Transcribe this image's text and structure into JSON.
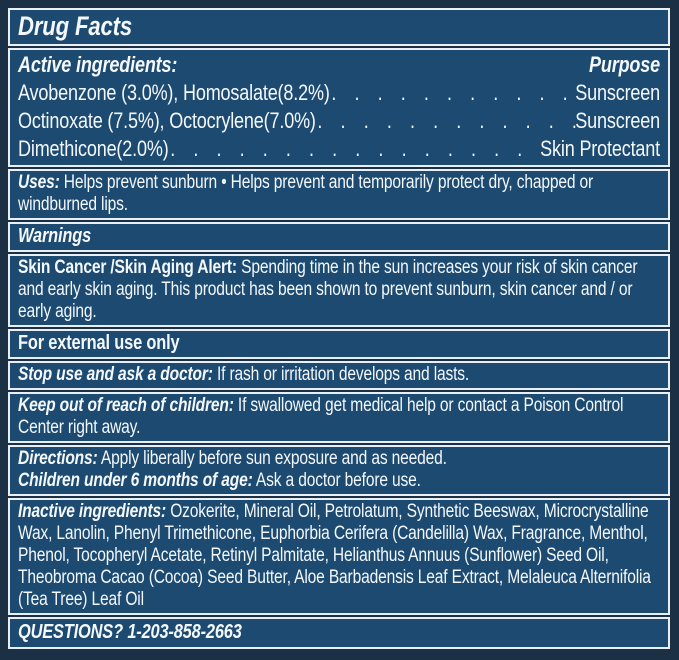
{
  "colors": {
    "panel_blue": "#1d4a71",
    "frame_navy": "#1b2f45",
    "border_white": "#e8eff5",
    "text_white": "#f4f8fb"
  },
  "title": "Drug Facts",
  "active": {
    "heading": "Active ingredients:",
    "purpose_heading": "Purpose",
    "leader_dots": ". . . . . . . . . . . . . . . . . . . . . . . . . . . . . . . . . . . . . . . . . . . . . . . . . . . . . . . . . . . .",
    "rows": [
      {
        "ingredient": "Avobenzone (3.0%), Homosalate(8.2%)",
        "purpose": "Sunscreen"
      },
      {
        "ingredient": "Octinoxate (7.5%), Octocrylene(7.0%)",
        "purpose": "Sunscreen"
      },
      {
        "ingredient": "Dimethicone(2.0%)",
        "purpose": "Skin Protectant"
      }
    ]
  },
  "uses": {
    "label": "Uses:",
    "text": "Helps prevent sunburn • Helps prevent and temporarily protect dry, chapped or windburned lips."
  },
  "warnings": {
    "heading": "Warnings"
  },
  "alert": {
    "label": "Skin Cancer /Skin Aging Alert:",
    "text": "Spending time in the sun increases your risk of skin cancer and early skin aging. This product has been shown to prevent sunburn, skin cancer and / or early aging."
  },
  "external_use": {
    "text": "For external use only"
  },
  "stop_use": {
    "label": "Stop use and ask a doctor:",
    "text": "If rash or irritation develops and lasts."
  },
  "keep_out": {
    "label": "Keep out of reach of children:",
    "text": "If swallowed get medical help or contact a Poison Control Center right away."
  },
  "directions": {
    "label": "Directions:",
    "text": "Apply liberally before sun exposure and as needed."
  },
  "children": {
    "label": "Children under 6 months of age:",
    "text": "Ask a doctor before use."
  },
  "inactive": {
    "label": "Inactive ingredients:",
    "text": "Ozokerite, Mineral Oil, Petrolatum, Synthetic Beeswax, Microcrystalline Wax, Lanolin, Phenyl Trimethicone, Euphorbia Cerifera (Candelilla) Wax, Fragrance, Menthol, Phenol, Tocopheryl Acetate, Retinyl Palmitate, Helianthus Annuus (Sunflower) Seed Oil, Theobroma Cacao (Cocoa) Seed Butter, Aloe Barbadensis Leaf Extract, Melaleuca Alternifolia (Tea Tree) Leaf Oil"
  },
  "questions": {
    "text": "QUESTIONS? 1-203-858-2663"
  }
}
